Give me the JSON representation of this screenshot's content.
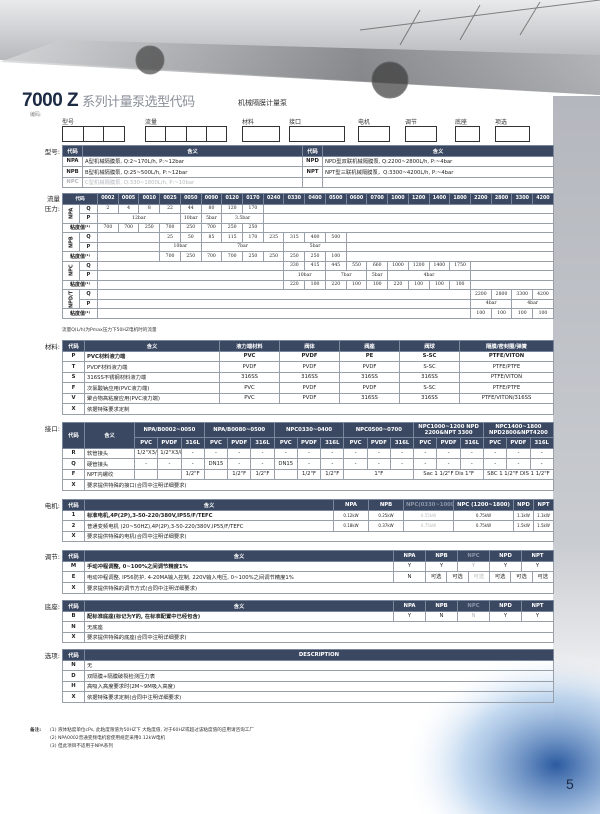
{
  "header": {
    "title": "7000 Z",
    "title_cn": "系列计量泵选型代码",
    "subtitle": "机械隔膜计量泵",
    "encoding_label": "编码:"
  },
  "code_boxes": [
    {
      "label": "型号",
      "slots": 3
    },
    {
      "label": "流量",
      "slots": 4
    },
    {
      "label": "材料",
      "slots": 1
    },
    {
      "label": "接口",
      "slots": 1
    },
    {
      "label": "电机",
      "slots": 1
    },
    {
      "label": "调节",
      "slots": 1
    },
    {
      "label": "底座",
      "slots": 1
    },
    {
      "label": "项选",
      "slots": 1
    }
  ],
  "sections": {
    "model": "型号:",
    "flow": "流量\n压力:",
    "material": "材料:",
    "connection": "接口:",
    "motor": "电机:",
    "regulation": "调节:",
    "base": "底座:",
    "options": "选项:"
  },
  "model_table": {
    "headers": [
      "代码",
      "含义",
      "代码",
      "含义"
    ],
    "rows": [
      [
        "NPA",
        "A型机械隔膜泵, Q:2~170L/h, P:~12bar",
        "NPD",
        "NPD型双联机械隔膜泵, Q:2200~2800L/h, P:~4bar"
      ],
      [
        "NPB",
        "B型机械隔膜泵, Q:25~500L/h, P:~12bar",
        "NPT",
        "NPT型三联机械隔膜泵，Q:3300~4200L/h, P:~4bar"
      ],
      [
        "NPC",
        "C型机械隔膜泵, Q:330~1800L/h, P:~10bar",
        "",
        ""
      ]
    ]
  },
  "flow_table": {
    "header": "代码",
    "codes": [
      "0002",
      "0005",
      "0010",
      "0025",
      "0050",
      "0090",
      "0120",
      "0170",
      "0240",
      "0330",
      "0400",
      "0500",
      "0600",
      "0700",
      "1000",
      "1200",
      "1400",
      "1800",
      "2200",
      "2800",
      "3300",
      "4200"
    ],
    "q_label": "Q",
    "p_label": "P",
    "visc_label": "粘度值⁽¹⁾",
    "models": [
      {
        "name": "NPA",
        "start": "0002",
        "q": [
          "2",
          "4",
          "8",
          "22",
          "44",
          "80",
          "120",
          "170"
        ],
        "p": [
          {
            "value": "12bar",
            "from": "0002",
            "to": "0025"
          },
          {
            "value": "10bar",
            "from": "0050",
            "to": "0050"
          },
          {
            "value": "5bar",
            "from": "0090",
            "to": "0090"
          },
          {
            "value": "3.5bar",
            "from": "0120",
            "to": "0170"
          }
        ],
        "visc": [
          "700",
          "700",
          "250",
          "700",
          "250",
          "700",
          "250",
          "250"
        ]
      },
      {
        "name": "NPB",
        "start": "0025",
        "q": [
          "25",
          "50",
          "85",
          "115",
          "170",
          "235",
          "315",
          "400",
          "500"
        ],
        "p": [
          {
            "value": "10bar",
            "from": "0025",
            "to": "0050"
          },
          {
            "value": "7bar",
            "from": "0090",
            "to": "0240"
          },
          {
            "value": "5bar",
            "from": "0330",
            "to": "0500"
          }
        ],
        "visc": [
          "700",
          "250",
          "700",
          "700",
          "250",
          "250",
          "250",
          "250",
          "100"
        ]
      },
      {
        "name": "NPC",
        "start": "0330",
        "q": [
          "330",
          "415",
          "445",
          "550",
          "660",
          "1000",
          "1200",
          "1400",
          "1750"
        ],
        "p": [
          {
            "value": "10bar",
            "from": "0330",
            "to": "0400"
          },
          {
            "value": "7bar",
            "from": "0500",
            "to": "0600"
          },
          {
            "value": "5bar",
            "from": "0700",
            "to": "0700"
          },
          {
            "value": "4bar",
            "from": "1000",
            "to": "1800"
          }
        ],
        "visc": [
          "220",
          "100",
          "220",
          "100",
          "100",
          "220",
          "100",
          "100",
          "100"
        ]
      },
      {
        "name": "NPD/T",
        "start": "2200",
        "q": [
          "2200",
          "2800",
          "3300",
          "4200"
        ],
        "p": [
          {
            "value": "4bar",
            "from": "2200",
            "to": "2800"
          },
          {
            "value": "4bar",
            "from": "3300",
            "to": "4200"
          }
        ],
        "visc": [
          "100",
          "100",
          "100",
          "100"
        ]
      }
    ],
    "note": "流量Q(L/h)为Pmax压力下50HZ电机时的流量"
  },
  "material_table": {
    "headers": [
      "代码",
      "含义",
      "液力端材料",
      "阀体",
      "阀座",
      "阀球",
      "隔膜/密封圈/弹簧"
    ],
    "rows": [
      [
        "P",
        "PVC材料液力端",
        "PVC",
        "PVDF",
        "PE",
        "S-SC",
        "PTFE/VITON"
      ],
      [
        "T",
        "PVDF材料液力端",
        "PVDF",
        "PVDF",
        "PVDF",
        "S-SC",
        "PTFE/PTFE"
      ],
      [
        "S",
        "316SS不锈钢材料液力端",
        "316SS",
        "316SS",
        "316SS",
        "316SS",
        "PTFE/VITON"
      ],
      [
        "F",
        "次氯酸钠应用(PVC液力端)",
        "PVC",
        "PVDF",
        "PVDF",
        "S-SC",
        "PTFE/PTFE"
      ],
      [
        "V",
        "聚合物高粘度应用(PVC液力端)",
        "PVC",
        "PVDF",
        "316SS",
        "316SS",
        "PTFE/VITON/316SS"
      ],
      [
        "X",
        "依据特殊要求定制"
      ]
    ]
  },
  "connection_table": {
    "headers": [
      "代码",
      "含义"
    ],
    "groups": [
      "NPA/B0002~0050",
      "NPA/B0080~0500",
      "NPC0330~0400",
      "NPC0500~0700",
      "NPC1000~1200 NPD 2200&NPT 3300",
      "NPC1400~1800 NPD2800&NPT4200"
    ],
    "materials": [
      "PVC",
      "PVDF",
      "316L"
    ],
    "rows": [
      {
        "code": "R",
        "desc": "软管接头",
        "cells": [
          "1/2\"X3/8\"",
          "1/2\"X3/8\"",
          "-",
          "-",
          "-",
          "-",
          "-",
          "-",
          "-",
          "-",
          "-",
          "-",
          "-",
          "-",
          "-",
          "-",
          "-",
          "-"
        ]
      },
      {
        "code": "Q",
        "desc": "硬管接头",
        "cells": [
          "-",
          "-",
          "-",
          "DN15",
          "-",
          "-",
          "DN15",
          "-",
          "-",
          "-",
          "-",
          "-",
          "-",
          "-",
          "-",
          "-",
          "-",
          "-"
        ]
      },
      {
        "code": "F",
        "desc": "NPT内螺纹",
        "cells": [
          "",
          "",
          "1/2\"F",
          "",
          "1/2\"F",
          "1/2\"F",
          "",
          "1/2\"F",
          "1/2\"F",
          {
            "text": "1\"F",
            "covers": 3
          },
          {
            "text": "Sac 1 1/2\"F  Dis 1\"F",
            "covers": 3
          },
          {
            "text": "S8C 1 1/2\"F  DIS 1 1/2\"F",
            "covers": 3
          }
        ]
      },
      {
        "code": "X",
        "desc": "要求提供特殊的接口(合同中注明详细要求)",
        "cells": []
      }
    ]
  },
  "motor_table": {
    "headers": [
      "代码",
      "含义",
      "NPA",
      "NPB",
      "NPC(0330~1000)",
      "NPC (1200~1800)",
      "NPD",
      "NPT"
    ],
    "rows": [
      [
        "1",
        "标准电机,4P(2P),3-50-220/380V,IP55/F/TEFC",
        "0.12kW",
        "0.25kW",
        "0.55kW",
        "0.75kW",
        "1.1kW",
        "1.1kW"
      ],
      [
        "2",
        "普通变频电机 (20~50HZ),4P(2P),3-50-220/380V,IP55/F/TEFC",
        "0.18kW",
        "0.37kW",
        "0.75kW",
        "0.75kW",
        "1.5kW",
        "1.5kW"
      ],
      [
        "X",
        "要求提供特殊的电机(合同中注明详细要求)"
      ]
    ]
  },
  "regulation_table": {
    "headers": [
      "代码",
      "含义",
      "NPA",
      "NPB",
      "NPC",
      "NPD",
      "NPT"
    ],
    "rows": [
      {
        "code": "M",
        "desc": "手动冲程调整, 0~100%之间调节精度1%",
        "values": [
          "Y",
          "Y",
          "Y",
          "Y",
          "Y"
        ]
      },
      {
        "code": "E",
        "desc": "电动冲程调整, IP56防护, 4-20MA输入控制, 220V输入电压, 0~100%之间调节精度1%",
        "values": [
          "N"
        ],
        "options": [
          "可选",
          "可选",
          "可选",
          "可选",
          "可选",
          "可选"
        ]
      },
      {
        "code": "X",
        "desc": "要求提供特殊的调节方式(合同中注明详细要求)"
      }
    ]
  },
  "base_table": {
    "headers": [
      "代码",
      "含义",
      "NPA",
      "NPB",
      "NPC",
      "NPD",
      "NPT"
    ],
    "rows": [
      [
        "B",
        "配标准底座(标记为Y的, 在标准配置中已经包含)",
        "Y",
        "N",
        "N",
        "Y",
        "Y"
      ],
      [
        "N",
        "无底座"
      ],
      [
        "X",
        "要求提供特殊的底座(合同中注明详细要求)"
      ]
    ]
  },
  "options_table": {
    "headers": [
      "代码",
      "DESCRIPTION"
    ],
    "rows": [
      [
        "N",
        "无"
      ],
      [
        "D",
        "双隔膜+隔膜破裂检测压力表"
      ],
      [
        "H",
        "高吸入高度要求时(2M~9M吸入高度)"
      ],
      [
        "X",
        "依据特殊要求定制(合同中注明详细要求)"
      ]
    ]
  },
  "footnotes": {
    "label": "备注:",
    "items": [
      "(1) 液体粘度单位cPs, 此粘度限值为50HZ下 大粘度值, 对于60HZ或超过该粘度值的应用请咨询工厂",
      "(2) NPA0002普通变频电机套使用规定采用0.12kW电机",
      "(3) 但此项目不适用于NPA系列"
    ]
  },
  "page_number": "5",
  "colors": {
    "header_bg": "#3b4862",
    "title": "#1c2a44",
    "strip": "#b4b7bd",
    "disabled": "#b5b8bd"
  }
}
